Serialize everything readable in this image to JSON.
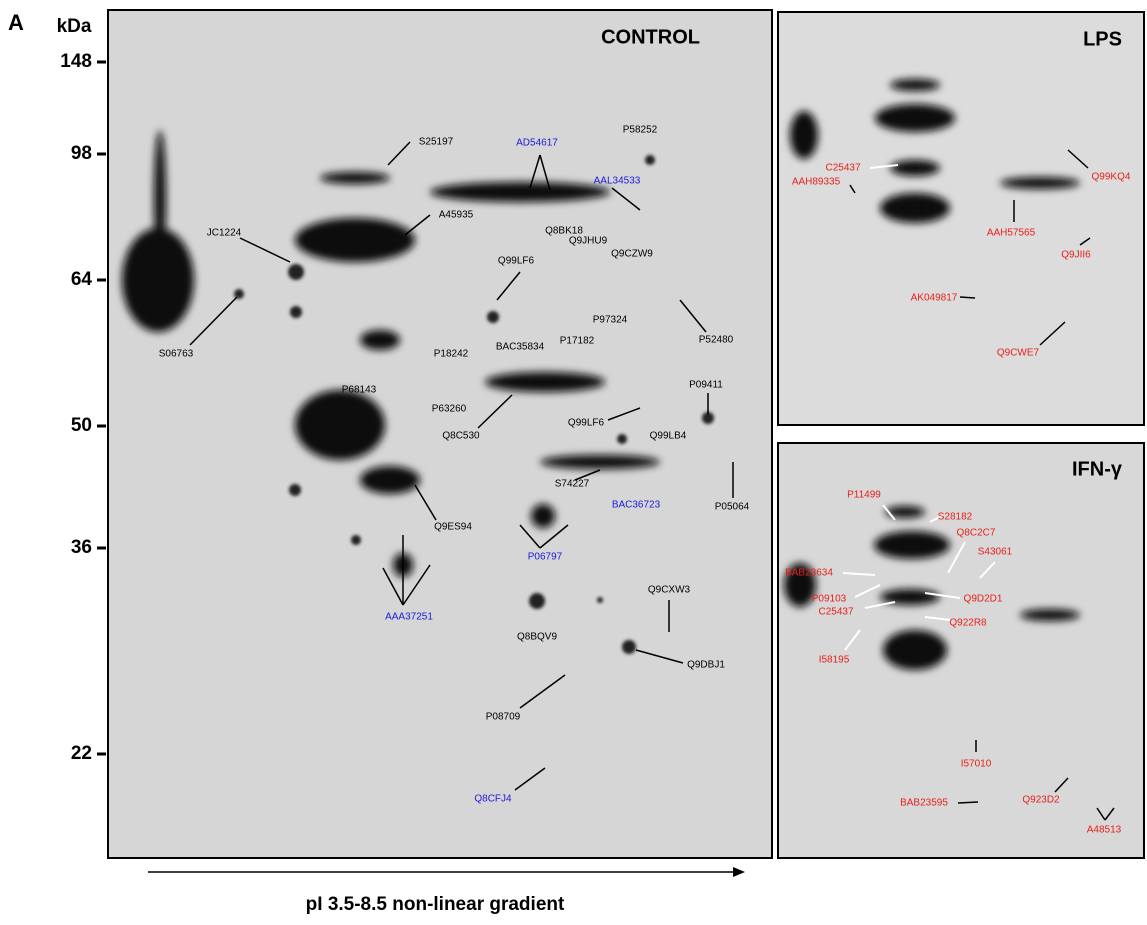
{
  "figure": {
    "panel_label": "A",
    "y_axis": {
      "unit": "kDa",
      "markers": [
        "148",
        "98",
        "64",
        "50",
        "36",
        "22"
      ]
    },
    "x_axis_label": "pI 3.5-8.5 non-linear gradient",
    "panels": [
      {
        "title": "CONTROL",
        "labels": [
          {
            "text": "S25197",
            "color": "#000000"
          },
          {
            "text": "AD54617",
            "color": "#1a1adc"
          },
          {
            "text": "P58252",
            "color": "#000000"
          },
          {
            "text": "AAL34533",
            "color": "#1a1adc"
          },
          {
            "text": "A45935",
            "color": "#000000"
          },
          {
            "text": "JC1224",
            "color": "#000000"
          },
          {
            "text": "Q8BK18",
            "color": "#000000"
          },
          {
            "text": "Q9JHU9",
            "color": "#000000"
          },
          {
            "text": "Q99LF6",
            "color": "#000000"
          },
          {
            "text": "Q9CZW9",
            "color": "#000000"
          },
          {
            "text": "P97324",
            "color": "#000000"
          },
          {
            "text": "S06763",
            "color": "#000000"
          },
          {
            "text": "BAC35834",
            "color": "#000000"
          },
          {
            "text": "P17182",
            "color": "#000000"
          },
          {
            "text": "P18242",
            "color": "#000000"
          },
          {
            "text": "P52480",
            "color": "#000000"
          },
          {
            "text": "P09411",
            "color": "#000000"
          },
          {
            "text": "P68143",
            "color": "#000000"
          },
          {
            "text": "P63260",
            "color": "#000000"
          },
          {
            "text": "Q99LF6",
            "color": "#000000"
          },
          {
            "text": "Q99LB4",
            "color": "#000000"
          },
          {
            "text": "Q8C530",
            "color": "#000000"
          },
          {
            "text": "S74227",
            "color": "#000000"
          },
          {
            "text": "BAC36723",
            "color": "#1a1adc"
          },
          {
            "text": "P05064",
            "color": "#000000"
          },
          {
            "text": "Q9ES94",
            "color": "#000000"
          },
          {
            "text": "P06797",
            "color": "#1a1adc"
          },
          {
            "text": "AAA37251",
            "color": "#1a1adc"
          },
          {
            "text": "Q9CXW3",
            "color": "#000000"
          },
          {
            "text": "Q8BQV9",
            "color": "#000000"
          },
          {
            "text": "Q9DBJ1",
            "color": "#000000"
          },
          {
            "text": "P08709",
            "color": "#000000"
          },
          {
            "text": "Q8CFJ4",
            "color": "#1a1adc"
          }
        ]
      },
      {
        "title": "LPS",
        "labels": [
          {
            "text": "C25437",
            "color": "#e8201a"
          },
          {
            "text": "AAH89335",
            "color": "#e8201a"
          },
          {
            "text": "Q99KQ4",
            "color": "#e8201a"
          },
          {
            "text": "AAH57565",
            "color": "#e8201a"
          },
          {
            "text": "Q9JII6",
            "color": "#e8201a"
          },
          {
            "text": "AK049817",
            "color": "#e8201a"
          },
          {
            "text": "Q9CWE7",
            "color": "#e8201a"
          }
        ]
      },
      {
        "title": "IFN-γ",
        "labels": [
          {
            "text": "P11499",
            "color": "#e8201a"
          },
          {
            "text": "S28182",
            "color": "#e8201a"
          },
          {
            "text": "Q8C2C7",
            "color": "#e8201a"
          },
          {
            "text": "S43061",
            "color": "#e8201a"
          },
          {
            "text": "BAB23634",
            "color": "#e8201a"
          },
          {
            "text": "P09103",
            "color": "#e8201a"
          },
          {
            "text": "Q9D2D1",
            "color": "#e8201a"
          },
          {
            "text": "C25437",
            "color": "#e8201a"
          },
          {
            "text": "Q922R8",
            "color": "#e8201a"
          },
          {
            "text": "I58195",
            "color": "#e8201a"
          },
          {
            "text": "I57010",
            "color": "#e8201a"
          },
          {
            "text": "BAB23595",
            "color": "#e8201a"
          },
          {
            "text": "Q923D2",
            "color": "#e8201a"
          },
          {
            "text": "A48513",
            "color": "#e8201a"
          }
        ]
      }
    ]
  }
}
